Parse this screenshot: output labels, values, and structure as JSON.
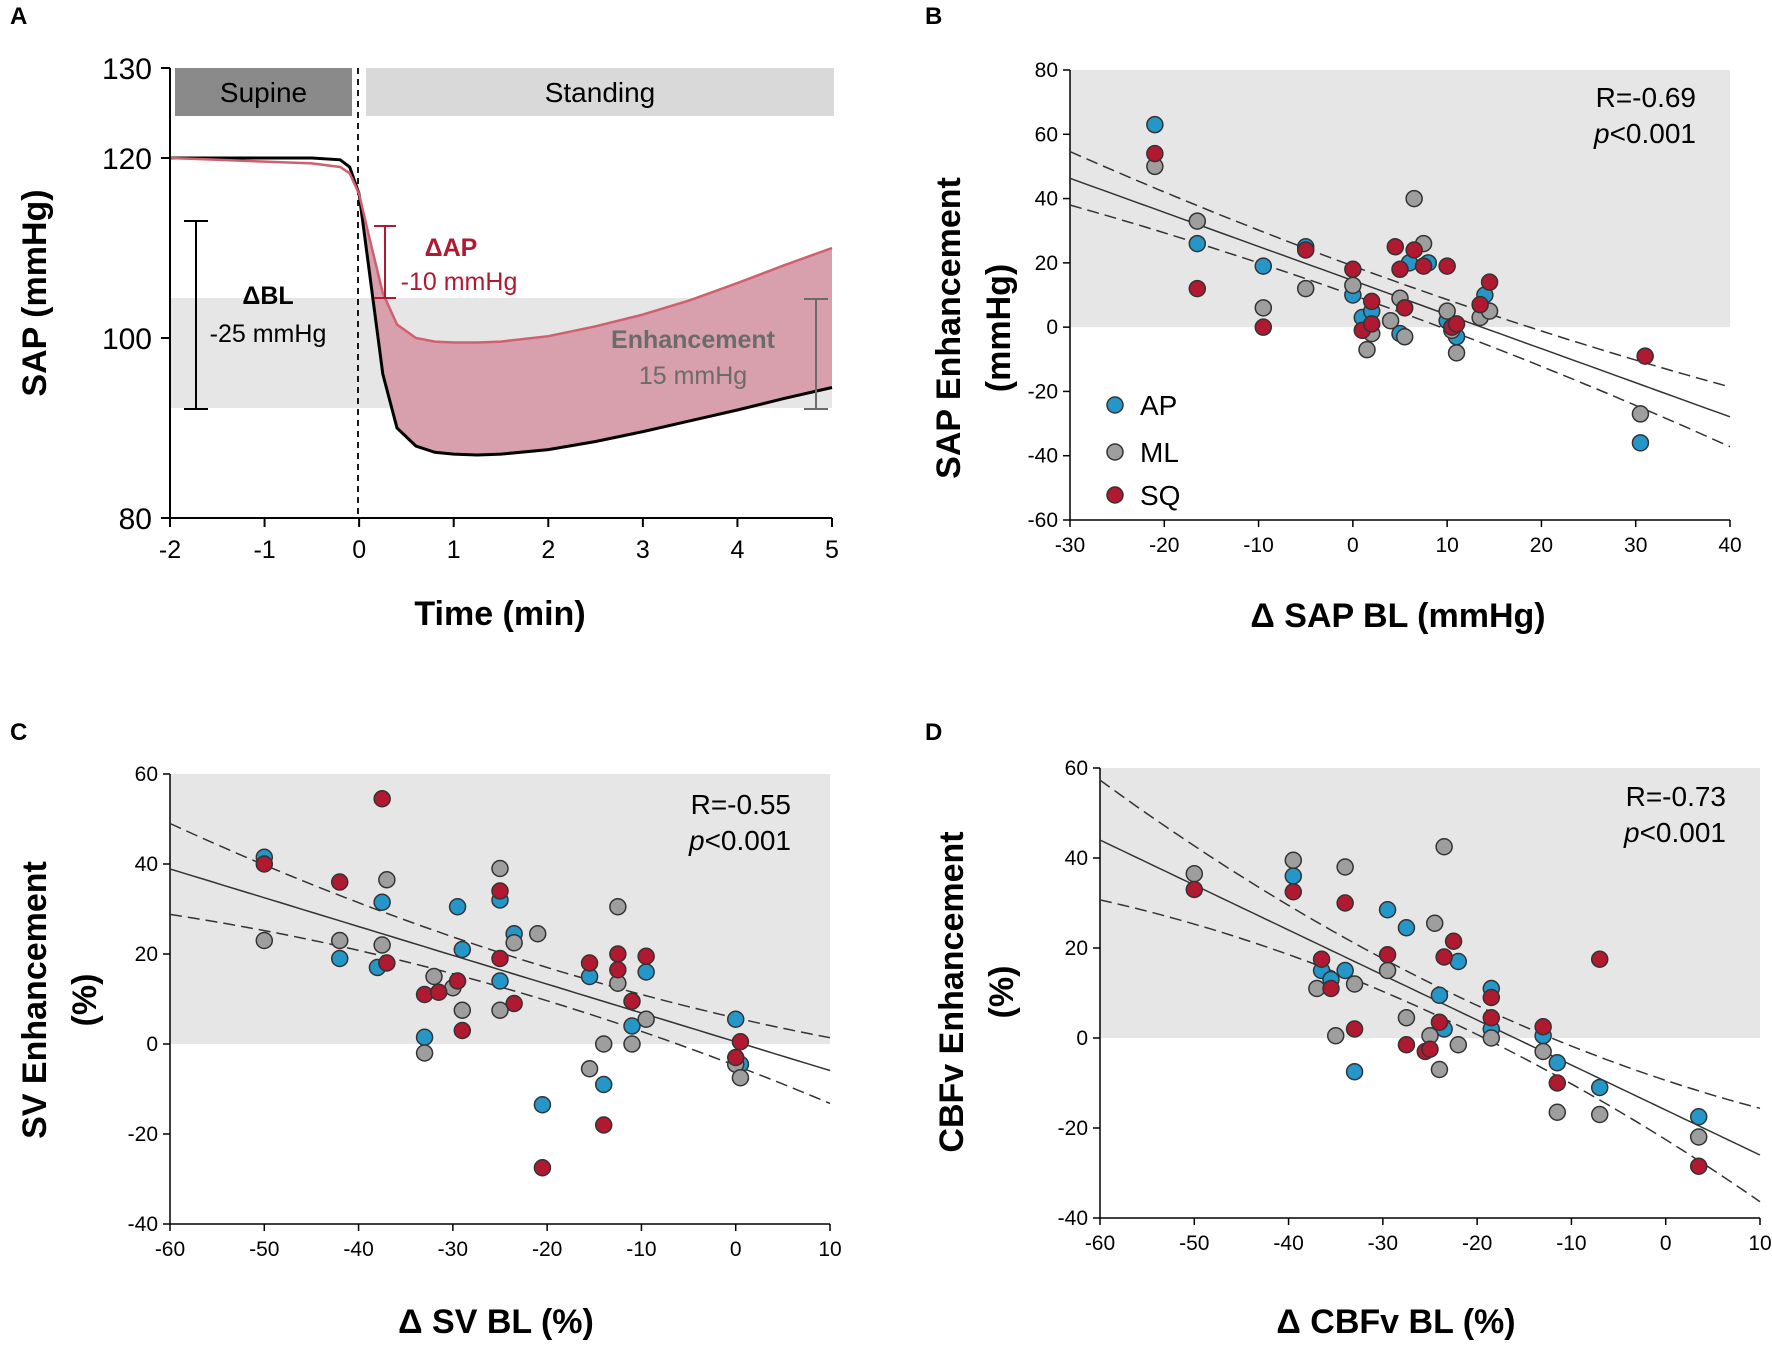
{
  "colors": {
    "ap": "#2596c8",
    "ml": "#9e9e9e",
    "sq": "#b0192f",
    "shade": "#e6e6e6",
    "supine_bar": "#8a8a8a",
    "standing_bar": "#d9d9d9",
    "enh_fill": "#d8a0ac",
    "pink_line": "#d0606f",
    "dark_red": "#b0192f",
    "enh_text": "#6b6b6b"
  },
  "chart_data": [
    {
      "panel": "A",
      "type": "line",
      "xlabel": "Time (min)",
      "ylabel": "SAP (mmHg)",
      "xlim": [
        -2,
        5
      ],
      "ylim": [
        80,
        130
      ],
      "xticks": [
        "-2",
        "-1",
        "0",
        "1",
        "2",
        "3",
        "4",
        "5"
      ],
      "yticks": [
        "80",
        "100",
        "120",
        "130"
      ],
      "phases": {
        "supine": "Supine",
        "standing": "Standing"
      },
      "series": [
        {
          "name": "baseline",
          "x": [
            -2,
            -1.5,
            -1,
            -0.5,
            -0.2,
            -0.1,
            0,
            0.1,
            0.25,
            0.4,
            0.6,
            0.8,
            1,
            1.25,
            1.5,
            2,
            2.5,
            3,
            3.5,
            4,
            4.5,
            5
          ],
          "y": [
            120,
            120,
            120,
            120,
            119.8,
            119,
            116,
            108,
            96,
            90,
            88,
            87.3,
            87.1,
            87,
            87.1,
            87.6,
            88.5,
            89.6,
            90.8,
            92,
            93.3,
            94.5
          ]
        },
        {
          "name": "standing response",
          "x": [
            -2,
            -1.5,
            -1,
            -0.5,
            -0.2,
            -0.1,
            0,
            0.1,
            0.25,
            0.4,
            0.6,
            0.8,
            1,
            1.25,
            1.5,
            2,
            2.5,
            3,
            3.5,
            4,
            4.5,
            5
          ],
          "y": [
            120,
            119.8,
            119.6,
            119.4,
            119,
            118.3,
            116,
            111.5,
            105,
            101.5,
            100,
            99.6,
            99.5,
            99.5,
            99.6,
            100.2,
            101.3,
            102.6,
            104.2,
            106.1,
            108.1,
            110
          ]
        }
      ],
      "annotations": {
        "dbl_title": "ΔBL",
        "dbl_value": "-25 mmHg",
        "dap_title": "ΔAP",
        "dap_value": "-10 mmHg",
        "enh_title": "Enhancement",
        "enh_value": "15 mmHg"
      }
    },
    {
      "panel": "B",
      "type": "scatter",
      "xlabel": "Δ SAP BL (mmHg)",
      "ylabel": "SAP Enhancement (mmHg)",
      "xlim": [
        -30,
        40
      ],
      "ylim": [
        -60,
        80
      ],
      "xticks": [
        "-30",
        "-20",
        "-10",
        "0",
        "10",
        "20",
        "30",
        "40"
      ],
      "yticks": [
        "-60",
        "-40",
        "-20",
        "0",
        "20",
        "40",
        "60",
        "80"
      ],
      "stats": {
        "r": "R=-0.69",
        "p_italic": "p",
        "p_rest": "<0.001"
      },
      "legend": [
        "AP",
        "ML",
        "SQ"
      ],
      "fit": {
        "slope": -1.06,
        "intercept": 14.5,
        "ci_center": 3,
        "ci_a": 4.5,
        "ci_b": 0.0035
      },
      "series": [
        {
          "name": "AP",
          "points": [
            [
              -21,
              63
            ],
            [
              -16.5,
              26
            ],
            [
              -9.5,
              19
            ],
            [
              -5,
              25
            ],
            [
              0,
              10
            ],
            [
              1,
              3
            ],
            [
              2,
              5
            ],
            [
              5,
              -2
            ],
            [
              6,
              20
            ],
            [
              8,
              20
            ],
            [
              10,
              2
            ],
            [
              11,
              -3
            ],
            [
              14,
              10
            ],
            [
              30.5,
              -36
            ]
          ]
        },
        {
          "name": "ML",
          "points": [
            [
              -21,
              50
            ],
            [
              -16.5,
              33
            ],
            [
              -9.5,
              6
            ],
            [
              -5,
              12
            ],
            [
              0,
              13
            ],
            [
              1.5,
              -7
            ],
            [
              2,
              -2
            ],
            [
              4,
              2
            ],
            [
              5,
              9
            ],
            [
              5.5,
              -3
            ],
            [
              6.5,
              40
            ],
            [
              7.5,
              26
            ],
            [
              10,
              5
            ],
            [
              10.5,
              -1
            ],
            [
              11,
              -8
            ],
            [
              13.5,
              3
            ],
            [
              14.5,
              5
            ],
            [
              30.5,
              -27
            ]
          ]
        },
        {
          "name": "SQ",
          "points": [
            [
              -21,
              54
            ],
            [
              -16.5,
              12
            ],
            [
              -9.5,
              0
            ],
            [
              -5,
              24
            ],
            [
              0,
              18
            ],
            [
              1,
              -1
            ],
            [
              2,
              8
            ],
            [
              2,
              1
            ],
            [
              4.5,
              25
            ],
            [
              5,
              18
            ],
            [
              5.5,
              6
            ],
            [
              6.5,
              24
            ],
            [
              7.5,
              19
            ],
            [
              10,
              19
            ],
            [
              10.5,
              0
            ],
            [
              11,
              1
            ],
            [
              13.5,
              7
            ],
            [
              14.5,
              14
            ],
            [
              31,
              -9
            ]
          ]
        }
      ]
    },
    {
      "panel": "C",
      "type": "scatter",
      "xlabel": "Δ SV BL (%)",
      "ylabel": "SV Enhancement (%)",
      "xlim": [
        -60,
        10
      ],
      "ylim": [
        -40,
        60
      ],
      "xticks": [
        "-60",
        "-50",
        "-40",
        "-30",
        "-20",
        "-10",
        "0",
        "10"
      ],
      "yticks": [
        "-40",
        "-20",
        "0",
        "20",
        "40",
        "60"
      ],
      "stats": {
        "r": "R=-0.55",
        "p_italic": "p",
        "p_rest": "<0.001"
      },
      "legend": [],
      "fit": {
        "slope": -0.64,
        "intercept": 0.5,
        "ci_center": -20,
        "ci_a": 3.7,
        "ci_b": 0.004
      },
      "series": [
        {
          "name": "AP",
          "points": [
            [
              -50,
              41.5
            ],
            [
              -42,
              19
            ],
            [
              -38,
              17
            ],
            [
              -37.5,
              31.5
            ],
            [
              -33,
              1.5
            ],
            [
              -29.5,
              30.5
            ],
            [
              -29,
              21
            ],
            [
              -25,
              32
            ],
            [
              -25,
              14
            ],
            [
              -23.5,
              24.5
            ],
            [
              -20.5,
              -13.5
            ],
            [
              -15.5,
              15
            ],
            [
              -14,
              -9
            ],
            [
              -11,
              4
            ],
            [
              -9.5,
              16
            ],
            [
              0,
              5.5
            ],
            [
              0.5,
              -4.5
            ]
          ]
        },
        {
          "name": "ML",
          "points": [
            [
              -50,
              23
            ],
            [
              -42,
              23
            ],
            [
              -37.5,
              22
            ],
            [
              -37,
              36.5
            ],
            [
              -33,
              -2
            ],
            [
              -32,
              15
            ],
            [
              -30,
              12.5
            ],
            [
              -29,
              7.5
            ],
            [
              -25,
              39
            ],
            [
              -25,
              7.5
            ],
            [
              -23.5,
              22.5
            ],
            [
              -21,
              24.5
            ],
            [
              -15.5,
              -5.5
            ],
            [
              -14,
              0
            ],
            [
              -12.5,
              30.5
            ],
            [
              -12.5,
              13.5
            ],
            [
              -11,
              0
            ],
            [
              -9.5,
              5.5
            ],
            [
              0,
              -4.5
            ],
            [
              0.5,
              -7.5
            ]
          ]
        },
        {
          "name": "SQ",
          "points": [
            [
              -50,
              40
            ],
            [
              -42,
              36
            ],
            [
              -37.5,
              54.5
            ],
            [
              -37,
              18
            ],
            [
              -33,
              11
            ],
            [
              -31.5,
              11.5
            ],
            [
              -29.5,
              14
            ],
            [
              -29,
              3
            ],
            [
              -25,
              34
            ],
            [
              -25,
              19
            ],
            [
              -23.5,
              9
            ],
            [
              -20.5,
              -27.5
            ],
            [
              -15.5,
              18
            ],
            [
              -14,
              -18
            ],
            [
              -12.5,
              20
            ],
            [
              -12.5,
              16.5
            ],
            [
              -11,
              9.5
            ],
            [
              -9.5,
              19.5
            ],
            [
              0,
              -3
            ],
            [
              0.5,
              0.5
            ]
          ]
        }
      ]
    },
    {
      "panel": "D",
      "type": "scatter",
      "xlabel": "Δ CBFv BL (%)",
      "ylabel": "CBFv Enhancement (%)",
      "xlim": [
        -60,
        10
      ],
      "ylim": [
        -40,
        60
      ],
      "xticks": [
        "-60",
        "-50",
        "-40",
        "-30",
        "-20",
        "-10",
        "0",
        "10"
      ],
      "yticks": [
        "-40",
        "-20",
        "0",
        "20",
        "40",
        "60"
      ],
      "stats": {
        "r": "R=-0.73",
        "p_italic": "p",
        "p_rest": "<0.001"
      },
      "legend": [],
      "fit": {
        "slope": -1.0,
        "intercept": -16,
        "ci_center": -22,
        "ci_a": 3.2,
        "ci_b": 0.007
      },
      "series": [
        {
          "name": "AP",
          "points": [
            [
              -39.5,
              36
            ],
            [
              -36.5,
              15
            ],
            [
              -35.5,
              13
            ],
            [
              -34,
              15
            ],
            [
              -33,
              -7.5
            ],
            [
              -29.5,
              28.5
            ],
            [
              -27.5,
              24.5
            ],
            [
              -24,
              9.5
            ],
            [
              -23.5,
              2
            ],
            [
              -22,
              17
            ],
            [
              -18.5,
              11
            ],
            [
              -18.5,
              2
            ],
            [
              -13,
              0.5
            ],
            [
              -11.5,
              -5.5
            ],
            [
              -7,
              -11
            ],
            [
              3.5,
              -17.5
            ]
          ]
        },
        {
          "name": "ML",
          "points": [
            [
              -50,
              36.5
            ],
            [
              -39.5,
              39.5
            ],
            [
              -37,
              11
            ],
            [
              -35,
              0.5
            ],
            [
              -34,
              38
            ],
            [
              -33,
              12
            ],
            [
              -29.5,
              15
            ],
            [
              -27.5,
              4.5
            ],
            [
              -25,
              0.5
            ],
            [
              -24.5,
              25.5
            ],
            [
              -24,
              -7
            ],
            [
              -23.5,
              42.5
            ],
            [
              -22,
              -1.5
            ],
            [
              -18.5,
              0
            ],
            [
              -13,
              -3
            ],
            [
              -11.5,
              -16.5
            ],
            [
              -7,
              -17
            ],
            [
              3.5,
              -22
            ]
          ]
        },
        {
          "name": "SQ",
          "points": [
            [
              -50,
              33
            ],
            [
              -39.5,
              32.5
            ],
            [
              -36.5,
              17.5
            ],
            [
              -35.5,
              11
            ],
            [
              -34,
              30
            ],
            [
              -33,
              2
            ],
            [
              -29.5,
              18.5
            ],
            [
              -27.5,
              -1.5
            ],
            [
              -25.5,
              -3
            ],
            [
              -25,
              -2.5
            ],
            [
              -24,
              3.5
            ],
            [
              -23.5,
              18
            ],
            [
              -22.5,
              21.5
            ],
            [
              -18.5,
              9
            ],
            [
              -18.5,
              4.5
            ],
            [
              -13,
              2.5
            ],
            [
              -11.5,
              -10
            ],
            [
              -7,
              17.5
            ],
            [
              3.5,
              -28.5
            ]
          ]
        }
      ]
    }
  ]
}
